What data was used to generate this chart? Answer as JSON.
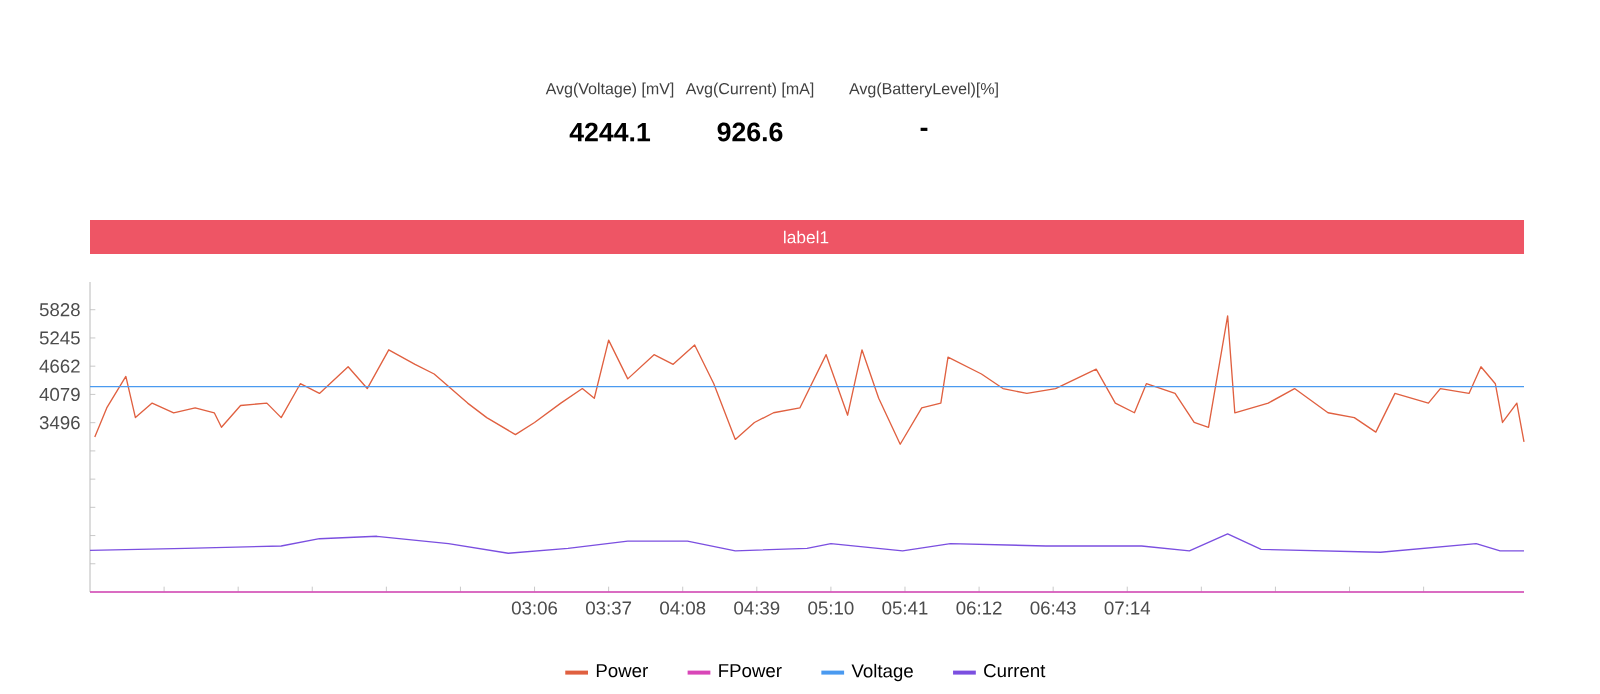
{
  "chart_data": {
    "type": "line",
    "legend": "bottom",
    "xlim": [
      0,
      600
    ],
    "ylim": [
      0,
      6400
    ],
    "xticks": [
      {
        "value": 31,
        "label": null
      },
      {
        "value": 62,
        "label": null
      },
      {
        "value": 93,
        "label": null
      },
      {
        "value": 124,
        "label": null
      },
      {
        "value": 155,
        "label": null
      },
      {
        "value": 186,
        "label": "03:06"
      },
      {
        "value": 217,
        "label": "03:37"
      },
      {
        "value": 248,
        "label": "04:08"
      },
      {
        "value": 279,
        "label": "04:39"
      },
      {
        "value": 310,
        "label": "05:10"
      },
      {
        "value": 341,
        "label": "05:41"
      },
      {
        "value": 372,
        "label": "06:12"
      },
      {
        "value": 403,
        "label": "06:43"
      },
      {
        "value": 434,
        "label": "07:14"
      },
      {
        "value": 465,
        "label": null
      },
      {
        "value": 496,
        "label": null
      },
      {
        "value": 527,
        "label": null
      },
      {
        "value": 558,
        "label": null
      }
    ],
    "yticks": [
      {
        "value": 583,
        "label": null
      },
      {
        "value": 1165,
        "label": null
      },
      {
        "value": 1748,
        "label": null
      },
      {
        "value": 2330,
        "label": null
      },
      {
        "value": 2913,
        "label": null
      },
      3496,
      4079,
      4662,
      5245,
      5828
    ],
    "annotations": [
      "Avg(Voltage) [mV]",
      "4244.1",
      "Avg(Current) [mA]",
      "926.6",
      "Avg(BatteryLevel)[%]",
      "-",
      "label1"
    ],
    "series": [
      {
        "name": "Power",
        "color": "#e06040",
        "x": [
          2,
          7,
          15,
          19,
          26,
          35,
          44,
          52,
          55,
          63,
          74,
          80,
          88,
          96,
          108,
          116,
          125,
          136,
          144,
          158,
          166,
          178,
          186,
          197,
          206,
          211,
          217,
          225,
          236,
          244,
          253,
          261,
          270,
          278,
          286,
          297,
          308,
          317,
          323,
          330,
          339,
          348,
          356,
          359,
          373,
          382,
          392,
          404,
          421,
          429,
          437,
          442,
          454,
          462,
          468,
          476,
          479,
          493,
          504,
          518,
          529,
          538,
          546,
          560,
          565,
          577,
          582,
          588,
          591,
          597,
          600
        ],
        "values": [
          3200,
          3800,
          4450,
          3600,
          3900,
          3700,
          3800,
          3700,
          3400,
          3850,
          3900,
          3600,
          4300,
          4100,
          4650,
          4200,
          5000,
          4700,
          4500,
          3900,
          3600,
          3250,
          3500,
          3900,
          4200,
          4000,
          5200,
          4400,
          4900,
          4700,
          5100,
          4300,
          3150,
          3500,
          3700,
          3800,
          4900,
          3650,
          5000,
          4000,
          3050,
          3800,
          3900,
          4850,
          4500,
          4200,
          4100,
          4200,
          4600,
          3900,
          3700,
          4300,
          4100,
          3500,
          3400,
          5700,
          3700,
          3900,
          4200,
          3700,
          3600,
          3300,
          4100,
          3900,
          4200,
          4100,
          4650,
          4300,
          3500,
          3900,
          3100
        ]
      },
      {
        "name": "FPower",
        "color": "#d946b8",
        "x": [
          0,
          600
        ],
        "values": [
          0,
          0
        ]
      },
      {
        "name": "Voltage",
        "color": "#4a9af0",
        "x": [
          0,
          600
        ],
        "values": [
          4240,
          4240
        ]
      },
      {
        "name": "Current",
        "color": "#7b4fe0",
        "x": [
          0,
          40,
          80,
          96,
          120,
          150,
          175,
          200,
          225,
          250,
          270,
          300,
          310,
          340,
          360,
          400,
          440,
          460,
          476,
          490,
          540,
          580,
          590,
          600
        ],
        "values": [
          860,
          900,
          950,
          1100,
          1150,
          1000,
          800,
          900,
          1050,
          1050,
          850,
          900,
          1000,
          850,
          1000,
          950,
          950,
          850,
          1200,
          880,
          820,
          1000,
          850,
          850
        ]
      }
    ]
  }
}
